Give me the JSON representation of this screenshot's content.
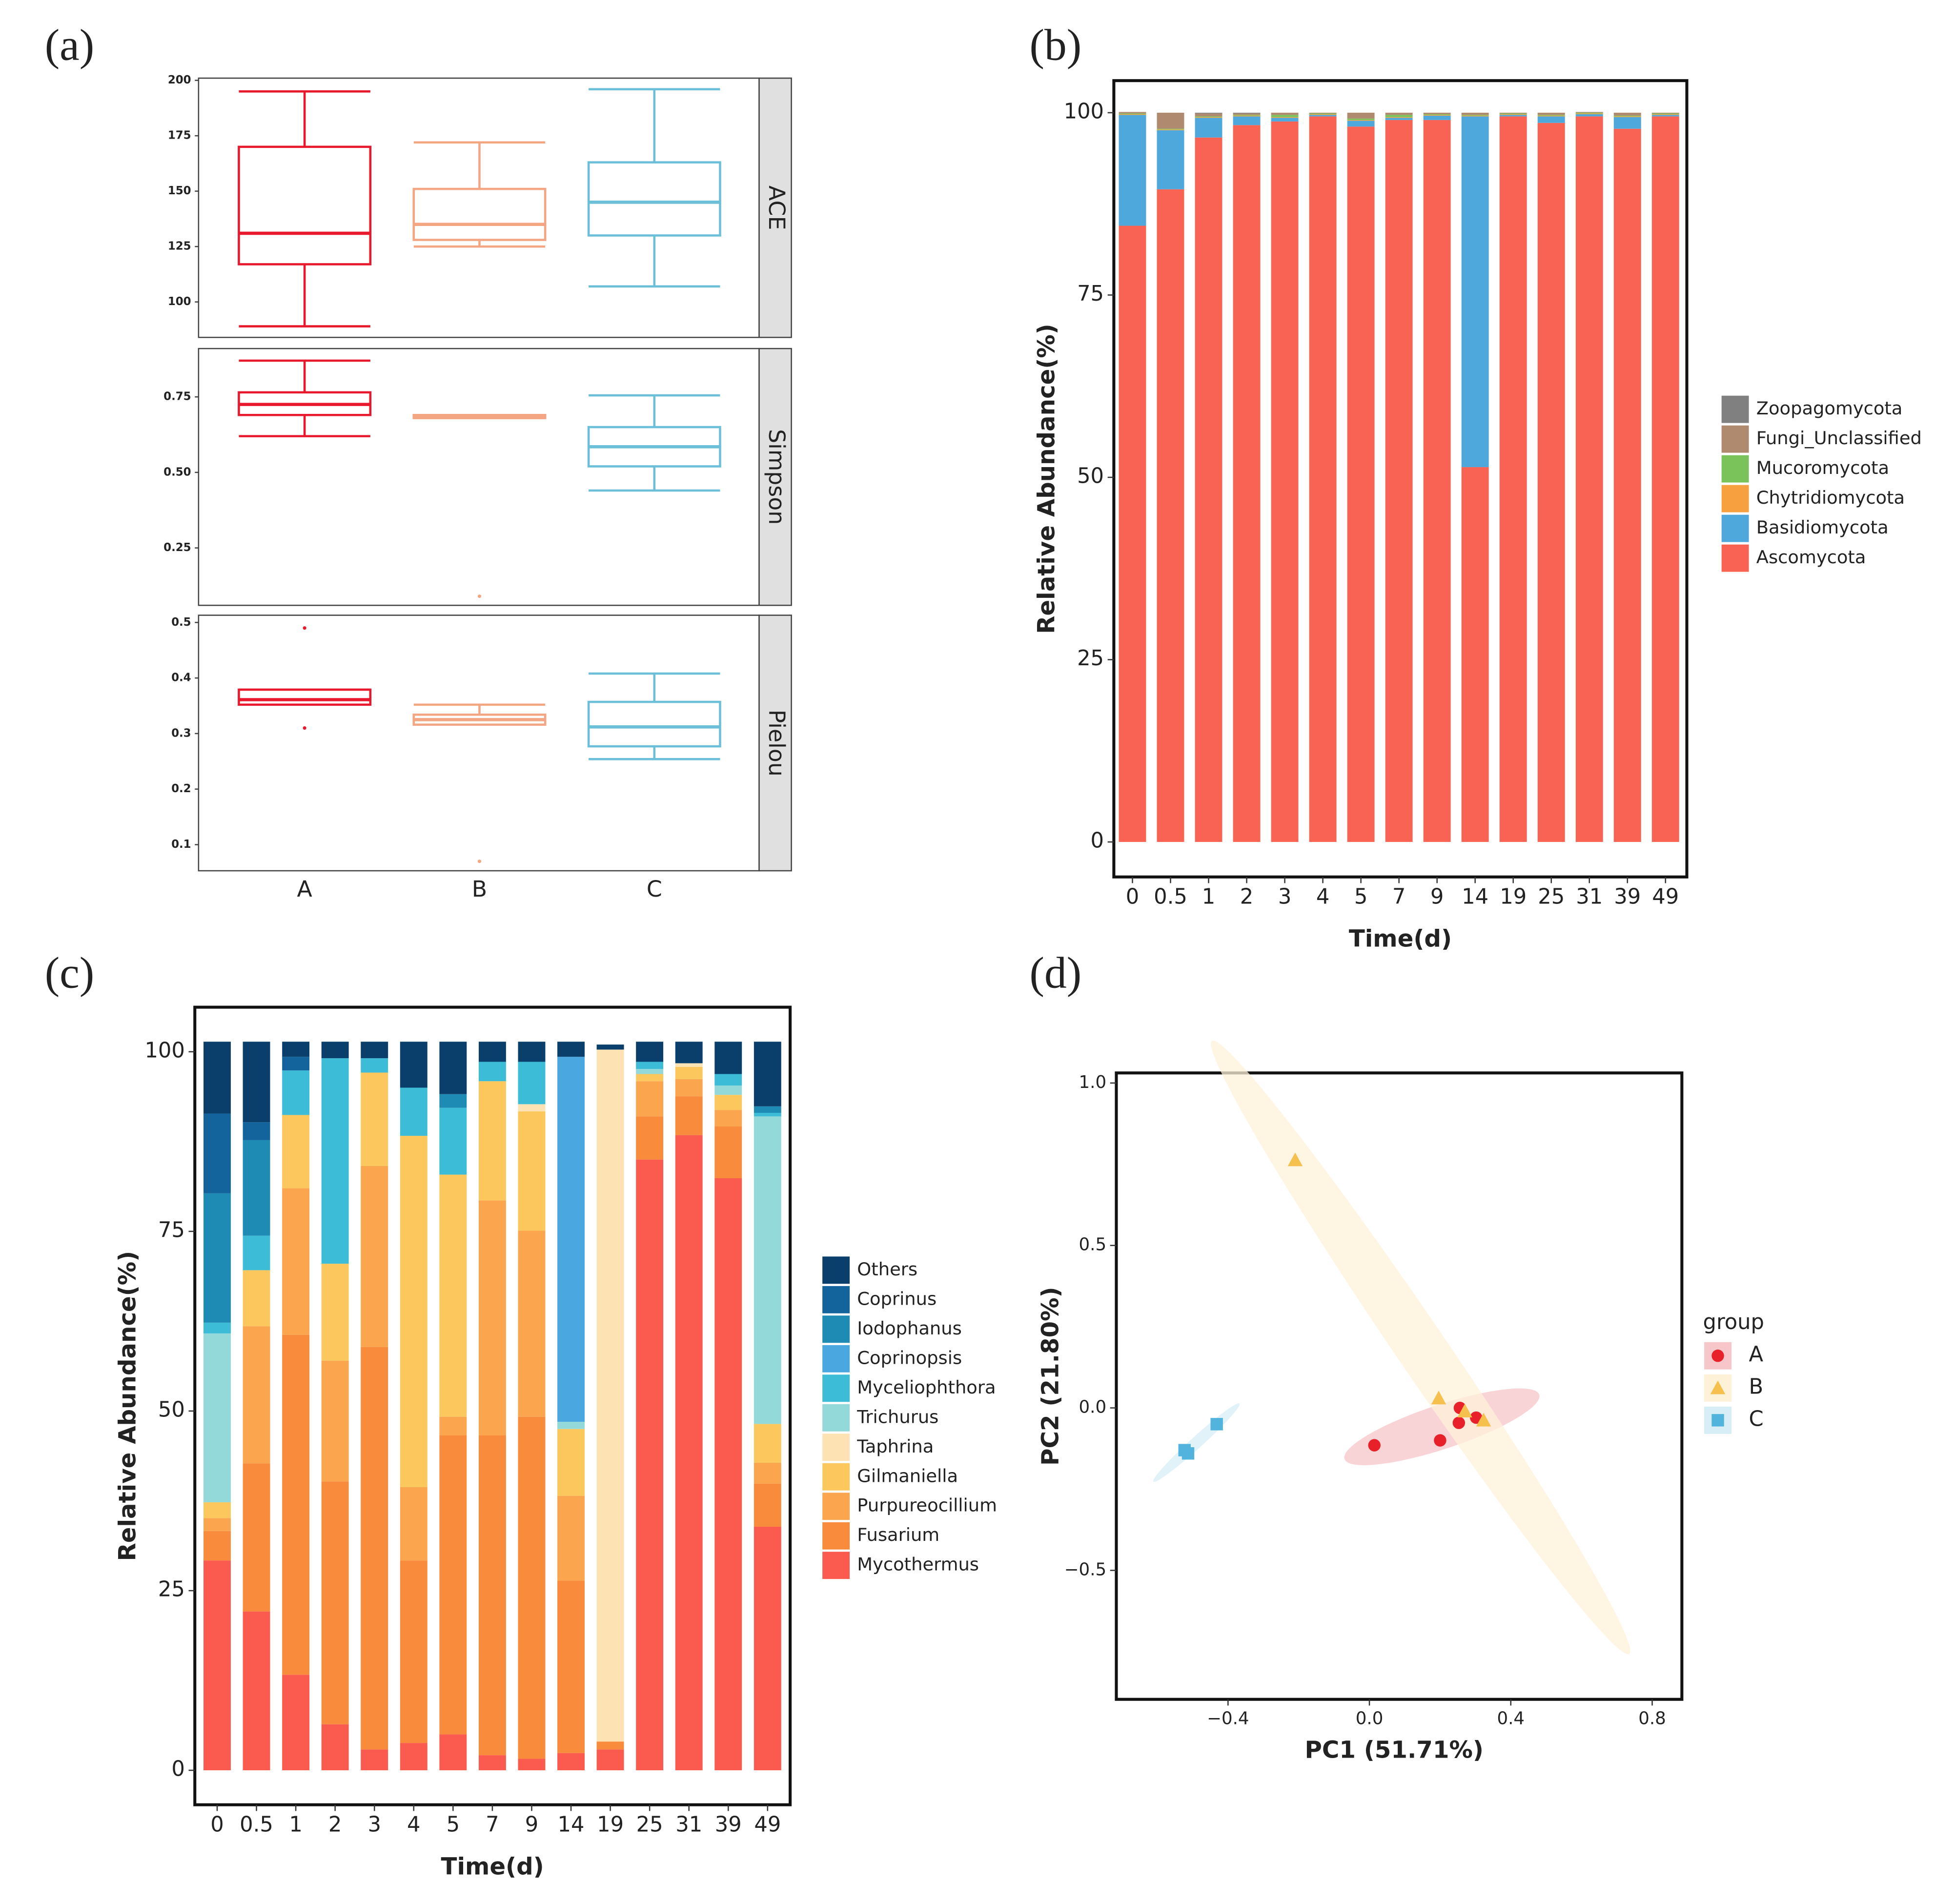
{
  "chart_data": [
    {
      "type": "box",
      "panel_label": "(a)",
      "categories": [
        "A",
        "B",
        "C"
      ],
      "colors": [
        "#e8192c",
        "#f4a582",
        "#6bbfd8"
      ],
      "facets": [
        {
          "name": "ACE",
          "ylim": [
            84,
            201
          ],
          "yticks": [
            100,
            125,
            150,
            175,
            200
          ],
          "boxes": [
            {
              "min": 89,
              "q1": 117,
              "median": 131,
              "q3": 170,
              "max": 195,
              "outliers": []
            },
            {
              "min": 125,
              "q1": 128,
              "median": 135,
              "q3": 151,
              "max": 172,
              "outliers": []
            },
            {
              "min": 107,
              "q1": 130,
              "median": 145,
              "q3": 163,
              "max": 196,
              "outliers": []
            }
          ]
        },
        {
          "name": "Simpson",
          "ylim": [
            0.06,
            0.91
          ],
          "yticks": [
            0.25,
            {
              "value": 0.5,
              "label": "0.50"
            },
            0.75
          ],
          "boxes": [
            {
              "min": 0.62,
              "q1": 0.69,
              "median": 0.725,
              "q3": 0.765,
              "max": 0.87,
              "outliers": []
            },
            {
              "min": 0.68,
              "q1": 0.68,
              "median": 0.685,
              "q3": 0.69,
              "max": 0.69,
              "outliers": [
                0.09
              ]
            },
            {
              "min": 0.44,
              "q1": 0.52,
              "median": 0.585,
              "q3": 0.65,
              "max": 0.755,
              "outliers": []
            }
          ]
        },
        {
          "name": "Pielou",
          "ylim": [
            0.053,
            0.513
          ],
          "yticks": [
            0.1,
            0.2,
            0.3,
            0.4,
            0.5
          ],
          "boxes": [
            {
              "min": 0.352,
              "q1": 0.352,
              "median": 0.361,
              "q3": 0.379,
              "max": 0.379,
              "outliers": [
                0.49,
                0.31
              ]
            },
            {
              "min": 0.316,
              "q1": 0.316,
              "median": 0.325,
              "q3": 0.334,
              "max": 0.352,
              "outliers": [
                0.07
              ]
            },
            {
              "min": 0.254,
              "q1": 0.277,
              "median": 0.312,
              "q3": 0.357,
              "max": 0.408,
              "outliers": []
            }
          ]
        }
      ]
    },
    {
      "type": "stacked_bar",
      "panel_label": "(b)",
      "xlabel": "Time(d)",
      "ylabel": "Relative Abundance(%)",
      "categories": [
        "0",
        "0.5",
        "1",
        "2",
        "3",
        "4",
        "5",
        "7",
        "9",
        "14",
        "19",
        "25",
        "31",
        "39",
        "49"
      ],
      "ylim": [
        -4.8,
        104.4
      ],
      "yticks": [
        0,
        25,
        50,
        75,
        100
      ],
      "series": [
        {
          "name": "Ascomycota",
          "color": "#f96353",
          "values": [
            84.5,
            89.5,
            96.6,
            98.3,
            98.8,
            99.5,
            98.1,
            99,
            99,
            51.4,
            99.5,
            98.6,
            99.5,
            97.8,
            99.5
          ]
        },
        {
          "name": "Basidiomycota",
          "color": "#4fa8dc",
          "values": [
            15.2,
            8.1,
            2.7,
            1.2,
            0.5,
            0.2,
            0.8,
            0.3,
            0.6,
            48.1,
            0.2,
            0.9,
            0.3,
            1.6,
            0.2
          ]
        },
        {
          "name": "Chytridiomycota",
          "color": "#f7a040",
          "values": [
            0.1,
            0.1,
            0.1,
            0.1,
            0.1,
            0.1,
            0.1,
            0.1,
            0.1,
            0.1,
            0.1,
            0.1,
            0.1,
            0.1,
            0.1
          ]
        },
        {
          "name": "Mucoromycota",
          "color": "#7ac35a",
          "values": [
            0.1,
            0.1,
            0.1,
            0.1,
            0.3,
            0.1,
            0.2,
            0.3,
            0.1,
            0.1,
            0.1,
            0.1,
            0.1,
            0.1,
            0.1
          ]
        },
        {
          "name": "Fungi_Unclassified",
          "color": "#b08a6e",
          "values": [
            0.2,
            2.2,
            0.4,
            0.2,
            0.3,
            0.1,
            0.8,
            0.3,
            0.2,
            0.3,
            0.1,
            0.3,
            0.1,
            0.4,
            0.1
          ]
        },
        {
          "name": "Zoopagomycota",
          "color": "#808080",
          "values": [
            0,
            0,
            0.1,
            0.1,
            0,
            0,
            0,
            0,
            0,
            0,
            0,
            0,
            0,
            0,
            0
          ]
        }
      ]
    },
    {
      "type": "stacked_bar",
      "panel_label": "(c)",
      "xlabel": "Time(d)",
      "ylabel": "Relative Abundance(%)",
      "categories": [
        "0",
        "0.5",
        "1",
        "2",
        "3",
        "4",
        "5",
        "7",
        "9",
        "14",
        "19",
        "25",
        "31",
        "39",
        "49"
      ],
      "ylim": [
        -4.8,
        106.2
      ],
      "yticks": [
        0,
        25,
        50,
        75,
        100
      ],
      "series": [
        {
          "name": "Mycothermus",
          "color": "#fb5a4f",
          "values": [
            29.2,
            22.1,
            13.3,
            6.4,
            2.9,
            3.8,
            5.0,
            2.1,
            1.6,
            2.4,
            2.9,
            85.0,
            88.4,
            82.4,
            33.9
          ]
        },
        {
          "name": "Fusarium",
          "color": "#f98b3c",
          "values": [
            4.1,
            20.6,
            47.3,
            33.8,
            56.0,
            25.4,
            41.6,
            44.5,
            47.6,
            24.0,
            1.1,
            6.0,
            5.4,
            7.2,
            6.0
          ]
        },
        {
          "name": "Purpureocillium",
          "color": "#fba64f",
          "values": [
            1.8,
            19.1,
            20.4,
            16.8,
            25.2,
            10.2,
            2.6,
            32.7,
            25.9,
            11.8,
            0,
            4.9,
            2.4,
            2.3,
            2.9
          ]
        },
        {
          "name": "Gilmaniella",
          "color": "#fcc75c",
          "values": [
            2.2,
            7.8,
            10.2,
            13.5,
            13.0,
            48.9,
            33.7,
            16.6,
            16.6,
            9.3,
            0,
            1.0,
            1.7,
            2.1,
            5.4
          ]
        },
        {
          "name": "Taphrina",
          "color": "#fde3b3",
          "values": [
            0,
            0,
            0,
            0,
            0,
            0,
            0,
            0,
            1.0,
            0,
            96.3,
            0,
            0.5,
            0,
            0
          ]
        },
        {
          "name": "Trichurus",
          "color": "#93d9da",
          "values": [
            23.5,
            0,
            0,
            0,
            0,
            0,
            0,
            0,
            0,
            1.0,
            0,
            0.7,
            0,
            1.3,
            42.8
          ]
        },
        {
          "name": "Myceliophthora",
          "color": "#3dbcd8",
          "values": [
            1.5,
            4.8,
            6.2,
            28.6,
            2.0,
            6.7,
            9.3,
            2.7,
            5.9,
            0,
            0,
            1.0,
            0,
            1.6,
            0.5
          ]
        },
        {
          "name": "Coprinopsis",
          "color": "#4aa7e0",
          "values": [
            0,
            0,
            0,
            0,
            0,
            0,
            0,
            0,
            0,
            50.8,
            0,
            0,
            0,
            0,
            0
          ]
        },
        {
          "name": "Iodophanus",
          "color": "#1d8bb3",
          "values": [
            18.0,
            13.3,
            0,
            0,
            0,
            0,
            1.9,
            0,
            0,
            0,
            0,
            0,
            0,
            0,
            0.9
          ]
        },
        {
          "name": "Coprinus",
          "color": "#13649c",
          "values": [
            11.1,
            2.5,
            1.9,
            0,
            0,
            0,
            0,
            0,
            0,
            0,
            0,
            0,
            0,
            0,
            0
          ]
        },
        {
          "name": "Others",
          "color": "#0b3f6b",
          "values": [
            10.0,
            11.2,
            2.1,
            2.3,
            2.3,
            6.4,
            7.3,
            2.8,
            2.8,
            2.1,
            0.7,
            2.8,
            3.0,
            4.5,
            9.0
          ]
        }
      ]
    },
    {
      "type": "scatter",
      "panel_label": "(d)",
      "xlabel": "PC1 (51.71%)",
      "ylabel": "PC2 (21.80%)",
      "legend_title": "group",
      "xlim": [
        -0.716,
        0.884
      ],
      "ylim": [
        -0.897,
        1.031
      ],
      "xticks": [
        {
          "value": -0.4,
          "label": "−0.4"
        },
        {
          "value": 0,
          "label": "0.0"
        },
        0.4,
        0.8
      ],
      "yticks": [
        {
          "value": -0.5,
          "label": "−0.5"
        },
        {
          "value": 0,
          "label": "0.0"
        },
        0.5,
        {
          "value": 1,
          "label": "1.0"
        }
      ],
      "ellipses": true,
      "series": [
        {
          "name": "A",
          "color": "#e8202a",
          "ellipse_color": "#f7c6c9",
          "marker": "circle",
          "x": [
            0.014,
            0.2,
            0.253,
            0.256,
            0.302
          ],
          "y": [
            -0.115,
            -0.1,
            -0.046,
            0,
            -0.03
          ]
        },
        {
          "name": "B",
          "color": "#f6c04e",
          "ellipse_color": "#fdf1d8",
          "marker": "triangle",
          "x": [
            -0.21,
            0.196,
            0.27,
            0.323
          ],
          "y": [
            0.763,
            0.03,
            -0.01,
            -0.038
          ]
        },
        {
          "name": "C",
          "color": "#52b4dc",
          "ellipse_color": "#d7eef6",
          "marker": "square",
          "x": [
            -0.432,
            -0.523,
            -0.513
          ],
          "y": [
            -0.05,
            -0.13,
            -0.14
          ]
        }
      ]
    }
  ]
}
